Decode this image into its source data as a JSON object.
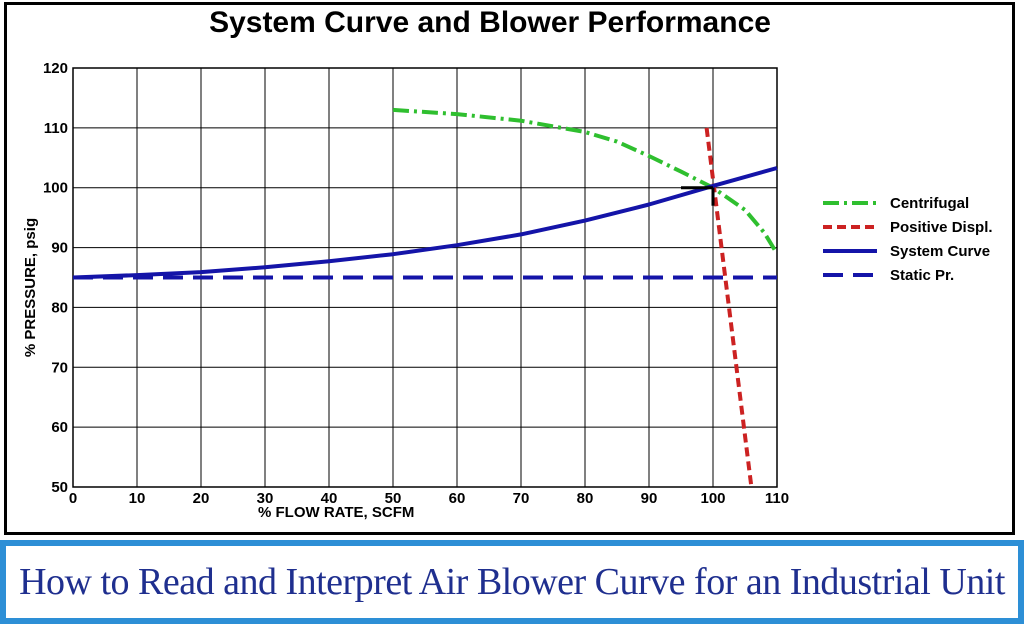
{
  "chart_data": {
    "type": "line",
    "title": "System Curve and Blower Performance",
    "xlabel": "% FLOW RATE, SCFM",
    "ylabel": "% PRESSURE, psig",
    "xlim": [
      0,
      110
    ],
    "ylim": [
      50,
      120
    ],
    "xticks": [
      0,
      10,
      20,
      30,
      40,
      50,
      60,
      70,
      80,
      90,
      100,
      110
    ],
    "yticks": [
      50,
      60,
      70,
      80,
      90,
      100,
      110,
      120
    ],
    "grid": true,
    "legend_position": "right",
    "series": [
      {
        "name": "Centrifugal",
        "color": "#2fbf2f",
        "style": "dash-dot",
        "points": [
          [
            50,
            113
          ],
          [
            60,
            112.3
          ],
          [
            70,
            111.2
          ],
          [
            80,
            109.3
          ],
          [
            85,
            107.7
          ],
          [
            90,
            105.3
          ],
          [
            95,
            102.7
          ],
          [
            100,
            100
          ],
          [
            105,
            96.3
          ],
          [
            108,
            92.5
          ],
          [
            110,
            89
          ]
        ]
      },
      {
        "name": "Positive Displ.",
        "color": "#cc2222",
        "style": "dashed",
        "points": [
          [
            99,
            110
          ],
          [
            106,
            50
          ]
        ]
      },
      {
        "name": "System Curve",
        "color": "#1414a8",
        "style": "solid",
        "points": [
          [
            0,
            85
          ],
          [
            10,
            85.4
          ],
          [
            20,
            85.9
          ],
          [
            30,
            86.7
          ],
          [
            40,
            87.7
          ],
          [
            50,
            88.9
          ],
          [
            60,
            90.4
          ],
          [
            70,
            92.2
          ],
          [
            80,
            94.5
          ],
          [
            90,
            97.2
          ],
          [
            100,
            100.3
          ],
          [
            110,
            103.3
          ]
        ]
      },
      {
        "name": "Static Pr.",
        "color": "#1414a8",
        "style": "long-dash",
        "points": [
          [
            0,
            85
          ],
          [
            110,
            85
          ]
        ]
      }
    ]
  },
  "banner": {
    "text": "How to Read and Interpret Air Blower Curve for an Industrial Unit",
    "border_color": "#2d8fd6",
    "text_color": "#1f2f8f"
  }
}
